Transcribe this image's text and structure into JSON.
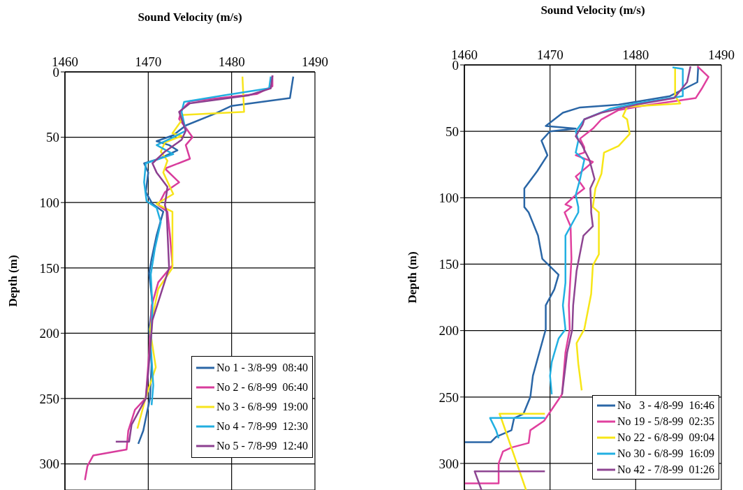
{
  "chart_data": [
    {
      "type": "line",
      "xlabel": "Sound Velocity (m/s)",
      "ylabel": "Depth (m)",
      "xlim": [
        1460,
        1490
      ],
      "xticks": [
        1460,
        1470,
        1480,
        1490
      ],
      "ylim": [
        320,
        0
      ],
      "yticks": [
        0,
        50,
        100,
        150,
        200,
        250,
        300
      ],
      "grid": true,
      "legend": "bottom right",
      "series": [
        {
          "name": "No 1 - 3/8-99  08:40",
          "color": "#2a66a6",
          "x": [
            1487.4,
            1487,
            1480,
            1478,
            1474.5,
            1473,
            1471,
            1472.5,
            1473.5,
            1471.3,
            1469.5,
            1470,
            1469.7,
            1470.5,
            1471.8,
            1471,
            1470.4,
            1470.1,
            1470.5,
            1470.1,
            1470.4,
            1470.2,
            1469.8,
            1469.4,
            1468.8
          ],
          "values": [
            3.6,
            20,
            26,
            32,
            41,
            48.5,
            53,
            56,
            60,
            66.5,
            70,
            77,
            92,
            101,
            107,
            125,
            143,
            154,
            177,
            197,
            224,
            250,
            262,
            274.6,
            284.7
          ]
        },
        {
          "name": "No 2 - 6/8-99  06:40",
          "color": "#d83c9c",
          "x": [
            1484.9,
            1484.9,
            1483,
            1475,
            1474,
            1473.7,
            1474.3,
            1475.3,
            1474.5,
            1475,
            1472,
            1473.7,
            1472,
            1471.2,
            1472.3,
            1472.6,
            1472.9,
            1471.2,
            1470.4,
            1470.1,
            1469.7,
            1468.4,
            1467.6,
            1467.4,
            1463.4,
            1462.7,
            1462.4
          ],
          "values": [
            2.7,
            11,
            17,
            22.5,
            29,
            36,
            41,
            50,
            56,
            66.5,
            74,
            84.5,
            92,
            102,
            107,
            125,
            148,
            161,
            179,
            215,
            249.7,
            258.6,
            274.7,
            289,
            293.5,
            301.6,
            312.4
          ]
        },
        {
          "name": "No 3 - 6/8-99  19:00",
          "color": "#f7e41c",
          "x": [
            1481.3,
            1481.5,
            1474,
            1473.9,
            1472.9,
            1474,
            1472,
            1471.5,
            1472.3,
            1471.8,
            1473,
            1471,
            1472.9,
            1472.9,
            1471.2,
            1470.2,
            1470.9,
            1469.7,
            1468.7
          ],
          "values": [
            3.6,
            30.6,
            33,
            38,
            47,
            49,
            54,
            61,
            68,
            77,
            93.5,
            101,
            107,
            150,
            166,
            197,
            226,
            249,
            273
          ]
        },
        {
          "name": "No 4 - 7/8-99  12:30",
          "color": "#22aee0",
          "x": [
            1484.7,
            1484.5,
            1479,
            1474.3,
            1474,
            1474.5,
            1473,
            1471,
            1473,
            1469.7,
            1469.5,
            1469.8,
            1471,
            1471.5,
            1470.8,
            1470.3,
            1470.5,
            1470.3,
            1470.6,
            1470.4
          ],
          "values": [
            3.6,
            12.6,
            18,
            23,
            30.6,
            45,
            50,
            56,
            63,
            70,
            84.5,
            99,
            104,
            115,
            135,
            155,
            180,
            210,
            240,
            255
          ]
        },
        {
          "name": "No 5 - 7/8-99  12:40",
          "color": "#8c3f90",
          "x": [
            1484.9,
            1484.7,
            1482,
            1475,
            1473.7,
            1474.5,
            1474,
            1472,
            1470.5,
            1471,
            1472.3,
            1472,
            1472.2,
            1472.5,
            1470.5,
            1470,
            1469.7,
            1468,
            1467.7,
            1466.1
          ],
          "values": [
            2.7,
            12.6,
            18,
            24,
            30.6,
            45,
            52,
            61,
            70,
            77,
            88,
            102,
            107,
            150,
            190,
            230,
            250,
            270,
            283,
            283
          ]
        }
      ]
    },
    {
      "type": "line",
      "xlabel": "Sound Velocity (m/s)",
      "ylabel": "Depth (m)",
      "xlim": [
        1460,
        1490
      ],
      "xticks": [
        1460,
        1470,
        1480,
        1490
      ],
      "ylim": [
        320,
        0
      ],
      "yticks": [
        0,
        50,
        100,
        150,
        200,
        250,
        300
      ],
      "grid": true,
      "legend": "bottom right",
      "series": [
        {
          "name": "No   3 - 4/8-99  16:46",
          "color": "#2a66a6",
          "x": [
            1487.3,
            1487.2,
            1484,
            1478,
            1473.5,
            1471.5,
            1470.5,
            1469.5,
            1473,
            1470,
            1469,
            1469.7,
            1468.5,
            1467,
            1467,
            1467.5,
            1468.6,
            1469.1,
            1471,
            1470.5,
            1469.5,
            1469.5,
            1468.6,
            1468,
            1467.7,
            1466.9,
            1465.8,
            1465.5,
            1463.7,
            1463.1,
            1460
          ],
          "values": [
            1,
            13,
            23.5,
            30,
            32,
            36,
            41,
            46,
            48,
            50,
            57,
            68,
            80,
            93,
            107,
            111,
            128.5,
            146,
            158,
            169,
            181,
            199,
            220,
            234,
            250,
            262.6,
            266,
            275,
            280,
            284,
            284
          ]
        },
        {
          "name": "No 19 - 5/8-99  02:35",
          "color": "#e0409e",
          "x": [
            1487.2,
            1488.5,
            1487.7,
            1487,
            1481,
            1478,
            1476,
            1475,
            1473.5,
            1474,
            1474,
            1473,
            1475,
            1473,
            1474,
            1473,
            1471.8,
            1472.5,
            1471.7,
            1472.4,
            1472.5,
            1472.2,
            1472.3,
            1471.8,
            1471.4,
            1469.3,
            1467.7,
            1467.5,
            1465.5,
            1464.5,
            1464,
            1464,
            1460
          ],
          "values": [
            1,
            9,
            18,
            25,
            30.6,
            34,
            41,
            48,
            55.5,
            62,
            66,
            68,
            73,
            84,
            93,
            98,
            105,
            107,
            111,
            121.5,
            146,
            181,
            199,
            216.5,
            248,
            268,
            275,
            284.6,
            288,
            291,
            300,
            315,
            315
          ]
        },
        {
          "name": "No 22 - 6/8-99  09:04",
          "color": "#f7e617",
          "x": [
            1484.6,
            1484.6,
            1485.2,
            1479,
            1478.5,
            1479,
            1479.3,
            1478,
            1476.3,
            1476,
            1475.3,
            1475,
            1475.7,
            1475.7,
            1475,
            1474.8,
            1474,
            1473.1,
            1473.3,
            1473.7,
            null,
            1469.4,
            1464.1,
            1464.3,
            1467.2
          ],
          "values": [
            2,
            23.5,
            29,
            31.5,
            38.6,
            41,
            52,
            61,
            66,
            82,
            93,
            107,
            111,
            142.6,
            151,
            172.5,
            199,
            209.5,
            225,
            245,
            null,
            262.6,
            262.6,
            266,
            320
          ]
        },
        {
          "name": "No 30 - 6/8-99  16:09",
          "color": "#22b0e2",
          "x": [
            1484.3,
            1485.5,
            1485.5,
            1480,
            1477,
            1474,
            1473,
            1473.3,
            1473,
            1474,
            1473.5,
            1473,
            1473.3,
            1473.3,
            1471.8,
            1471.8,
            1471.5,
            1471.8,
            1471,
            1470.2,
            1470,
            1470.2,
            null,
            1469.4,
            1463,
            1463.7,
            1464
          ],
          "values": [
            1.8,
            3,
            23.5,
            29,
            33,
            41,
            50,
            57,
            66,
            71.5,
            86,
            98,
            107,
            111,
            128.5,
            164,
            181,
            199,
            206,
            223.6,
            234,
            248,
            null,
            265.8,
            265.8,
            275,
            281
          ]
        },
        {
          "name": "No 42 - 7/8-99  01:26",
          "color": "#8e4592",
          "x": [
            1486.4,
            1486,
            1484.5,
            1480,
            1476,
            1474,
            1473.8,
            1473,
            1473.7,
            1474.6,
            1475.2,
            1474.7,
            1474.8,
            1474.8,
            1475,
            1473.9,
            1473.1,
            1472.7,
            1472.6,
            1472,
            1471.4,
            null,
            1469.4,
            1461.2,
            1462
          ],
          "values": [
            1,
            13,
            25,
            30,
            36,
            41,
            45,
            53.7,
            60,
            71.5,
            86,
            93,
            107,
            111,
            121.5,
            128.5,
            155,
            181,
            199,
            216.5,
            248,
            null,
            306,
            306,
            320
          ]
        }
      ]
    }
  ]
}
